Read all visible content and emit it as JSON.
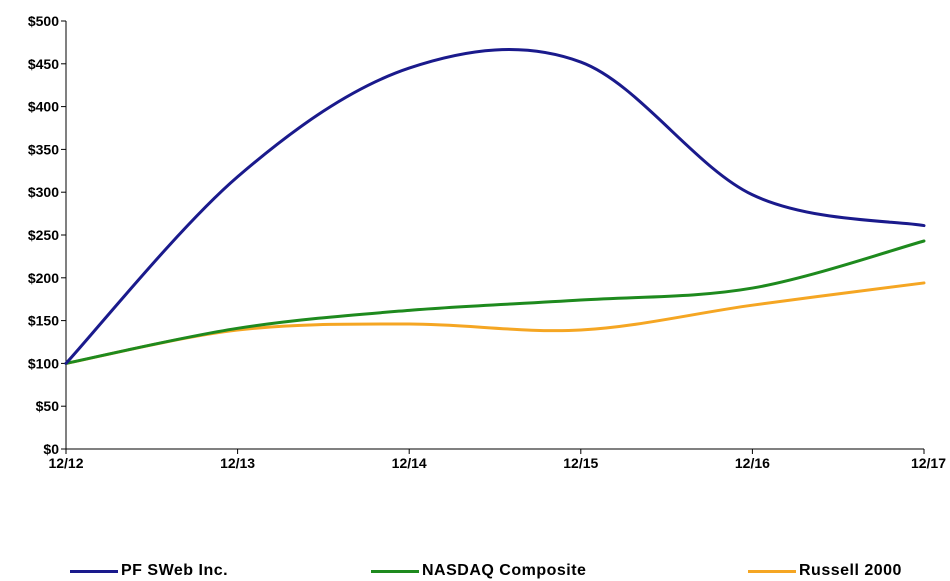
{
  "chart_data": {
    "type": "line",
    "categories": [
      "12/12",
      "12/13",
      "12/14",
      "12/15",
      "12/16",
      "12/17"
    ],
    "y_ticks": [
      "$0",
      "$50",
      "$100",
      "$150",
      "$200",
      "$250",
      "$300",
      "$350",
      "$400",
      "$450",
      "$500"
    ],
    "ylim": [
      0,
      500
    ],
    "grid": false,
    "legend_position": "bottom",
    "series": [
      {
        "name": "PFSWeb Inc.",
        "label": "PF SWeb Inc.",
        "color": "#1a1a8c",
        "values": [
          100,
          318,
          445,
          452,
          297,
          261
        ]
      },
      {
        "name": "NASDAQ Composite",
        "label": "NASDAQ Composite",
        "color": "#1e8a1e",
        "values": [
          100,
          141,
          162,
          174,
          188,
          243
        ]
      },
      {
        "name": "Russell 2000",
        "label": "Russell 2000",
        "color": "#f5a623",
        "values": [
          100,
          139,
          146,
          139,
          168,
          194
        ]
      }
    ]
  }
}
